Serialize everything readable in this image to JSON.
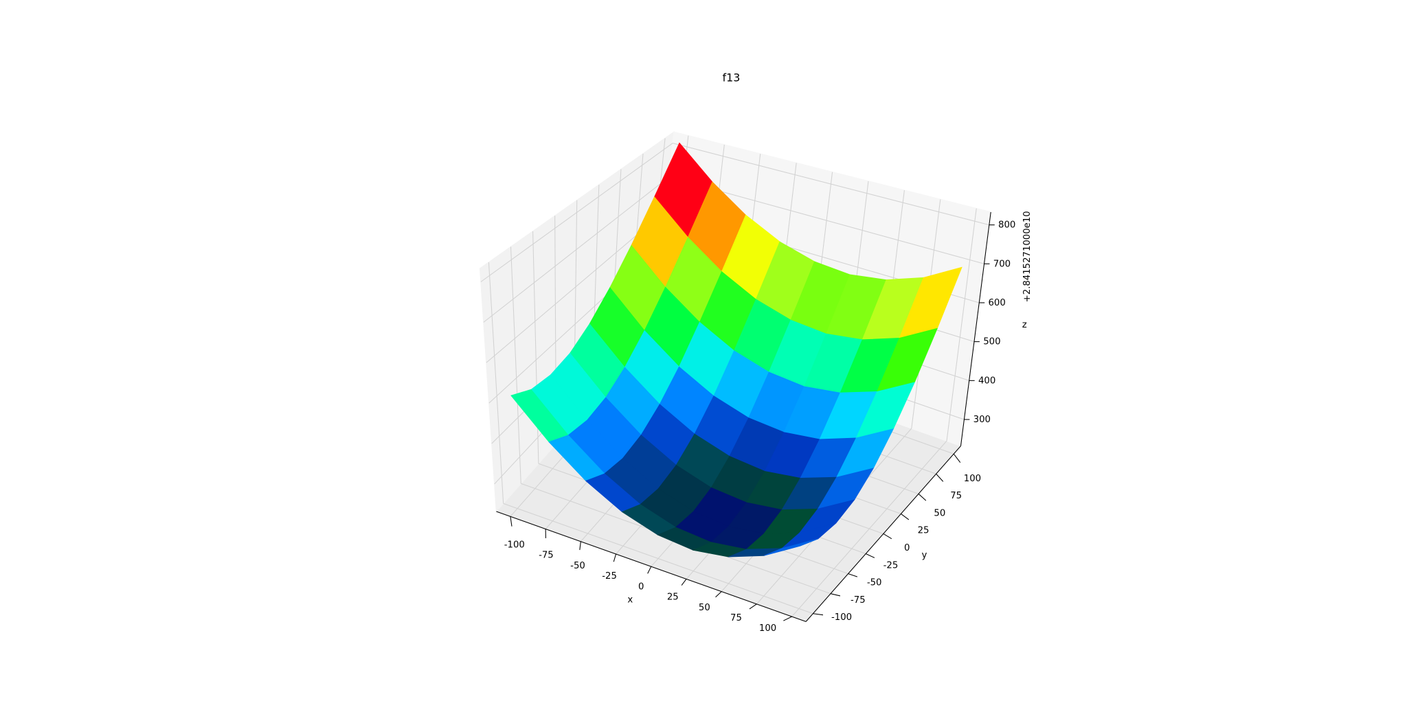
{
  "chart_data": {
    "type": "surface",
    "title": "f13",
    "x_label": "x",
    "y_label": "y",
    "z_label": "z",
    "z_offset_label": "+2.8415271000e10",
    "colormap": "gist_ncar",
    "x": [
      -100,
      -75,
      -50,
      -25,
      0,
      25,
      50,
      75,
      100
    ],
    "y": [
      -100,
      -75,
      -50,
      -25,
      0,
      25,
      50,
      75,
      100
    ],
    "z": [
      [
        513,
        483,
        474,
        483,
        513,
        563,
        632,
        721,
        830
      ],
      [
        428,
        398,
        388,
        398,
        428,
        477,
        546,
        636,
        745
      ],
      [
        362,
        332,
        322,
        332,
        362,
        411,
        481,
        570,
        679
      ],
      [
        316,
        286,
        276,
        286,
        316,
        365,
        435,
        524,
        633
      ],
      [
        290,
        260,
        250,
        260,
        290,
        339,
        409,
        498,
        607
      ],
      [
        283,
        254,
        244,
        254,
        283,
        333,
        402,
        491,
        600
      ],
      [
        297,
        267,
        257,
        267,
        297,
        346,
        416,
        505,
        614
      ],
      [
        330,
        300,
        290,
        300,
        330,
        380,
        449,
        538,
        647
      ],
      [
        383,
        353,
        344,
        353,
        383,
        433,
        502,
        591,
        700
      ]
    ],
    "xlim": [
      -110,
      110
    ],
    "ylim": [
      -110,
      110
    ],
    "zlim": [
      232,
      833
    ],
    "xticks": [
      -100,
      -75,
      -50,
      -25,
      0,
      25,
      50,
      75,
      100
    ],
    "yticks": [
      -100,
      -75,
      -50,
      -25,
      0,
      25,
      50,
      75,
      100
    ],
    "zticks": [
      300,
      400,
      500,
      600,
      700,
      800
    ],
    "grid": true
  }
}
